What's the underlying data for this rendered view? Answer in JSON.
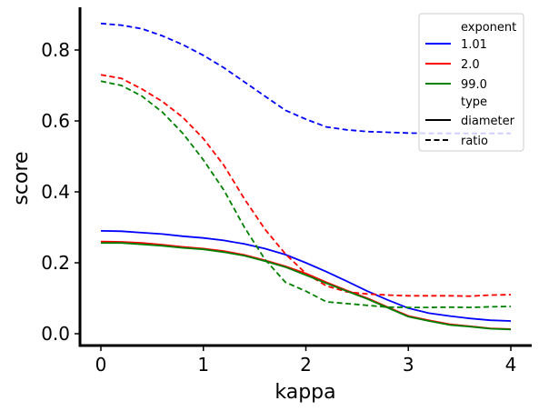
{
  "chart_data": {
    "type": "line",
    "xlabel": "kappa",
    "ylabel": "score",
    "xlim": [
      -0.2,
      4.2
    ],
    "ylim": [
      -0.03,
      0.93
    ],
    "xticks": [
      0,
      1,
      2,
      3,
      4
    ],
    "xtick_labels": [
      "0",
      "1",
      "2",
      "3",
      "4"
    ],
    "yticks": [
      0.0,
      0.2,
      0.4,
      0.6,
      0.8
    ],
    "ytick_labels": [
      "0.0",
      "0.2",
      "0.4",
      "0.6",
      "0.8"
    ],
    "grid": false,
    "legend": {
      "placement": "top-right",
      "hue_title": "exponent",
      "style_title": "type",
      "entries": [
        {
          "label": "1.01",
          "color": "#0000ff",
          "dash": "solid"
        },
        {
          "label": "2.0",
          "color": "#ff0000",
          "dash": "solid"
        },
        {
          "label": "99.0",
          "color": "#008000",
          "dash": "solid"
        },
        {
          "label": "diameter",
          "color": "#000000",
          "dash": "solid"
        },
        {
          "label": "ratio",
          "color": "#000000",
          "dash": "dashed"
        }
      ]
    },
    "x": [
      0,
      0.2,
      0.4,
      0.6,
      0.8,
      1.0,
      1.2,
      1.4,
      1.6,
      1.8,
      2.0,
      2.2,
      2.4,
      2.6,
      2.8,
      3.0,
      3.2,
      3.4,
      3.6,
      3.8,
      4.0
    ],
    "series": [
      {
        "exponent": "1.01",
        "type": "diameter",
        "color": "#0000ff",
        "dash": "solid",
        "values": [
          0.29,
          0.289,
          0.285,
          0.281,
          0.275,
          0.27,
          0.263,
          0.253,
          0.24,
          0.223,
          0.2,
          0.175,
          0.148,
          0.12,
          0.095,
          0.072,
          0.058,
          0.05,
          0.043,
          0.038,
          0.036
        ]
      },
      {
        "exponent": "1.01",
        "type": "ratio",
        "color": "#0000ff",
        "dash": "dashed",
        "values": [
          0.875,
          0.87,
          0.86,
          0.84,
          0.815,
          0.785,
          0.75,
          0.71,
          0.67,
          0.63,
          0.605,
          0.583,
          0.575,
          0.57,
          0.568,
          0.566,
          0.565,
          0.565,
          0.565,
          0.565,
          0.565
        ]
      },
      {
        "exponent": "2.0",
        "type": "diameter",
        "color": "#ff0000",
        "dash": "solid",
        "values": [
          0.26,
          0.259,
          0.256,
          0.251,
          0.245,
          0.24,
          0.233,
          0.222,
          0.207,
          0.19,
          0.17,
          0.145,
          0.122,
          0.1,
          0.075,
          0.05,
          0.038,
          0.027,
          0.021,
          0.015,
          0.013
        ]
      },
      {
        "exponent": "2.0",
        "type": "ratio",
        "color": "#ff0000",
        "dash": "dashed",
        "values": [
          0.73,
          0.72,
          0.69,
          0.655,
          0.61,
          0.55,
          0.475,
          0.38,
          0.295,
          0.225,
          0.17,
          0.135,
          0.118,
          0.112,
          0.109,
          0.107,
          0.107,
          0.107,
          0.106,
          0.109,
          0.11
        ]
      },
      {
        "exponent": "99.0",
        "type": "diameter",
        "color": "#008000",
        "dash": "solid",
        "values": [
          0.256,
          0.256,
          0.252,
          0.248,
          0.242,
          0.238,
          0.23,
          0.22,
          0.205,
          0.188,
          0.165,
          0.142,
          0.12,
          0.098,
          0.073,
          0.048,
          0.036,
          0.025,
          0.02,
          0.014,
          0.012
        ]
      },
      {
        "exponent": "99.0",
        "type": "ratio",
        "color": "#008000",
        "dash": "dashed",
        "values": [
          0.712,
          0.7,
          0.67,
          0.625,
          0.565,
          0.49,
          0.405,
          0.3,
          0.21,
          0.145,
          0.12,
          0.09,
          0.085,
          0.08,
          0.075,
          0.074,
          0.074,
          0.075,
          0.074,
          0.076,
          0.077
        ]
      }
    ]
  }
}
